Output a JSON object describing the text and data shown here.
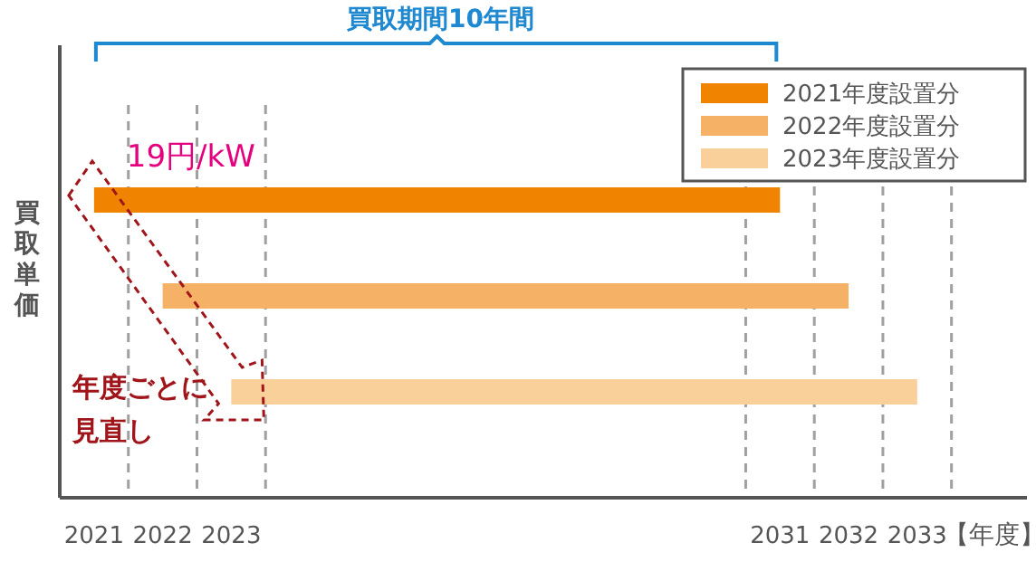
{
  "chart_data": {
    "type": "bar",
    "orientation": "horizontal",
    "xlabel": "【年度】",
    "ylabel": "買取単価",
    "categories": [
      null,
      null,
      null
    ],
    "series": [
      {
        "name": "2021年度設置分",
        "color": "#f08300",
        "values": [
          10,
          null,
          null
        ],
        "base": [
          2021,
          null,
          null
        ]
      },
      {
        "name": "2022年度設置分",
        "color": "#f5b266",
        "values": [
          null,
          10,
          null
        ],
        "base": [
          null,
          2022,
          null
        ]
      },
      {
        "name": "2023年度設置分",
        "color": "#f9cf9a",
        "values": [
          null,
          null,
          10
        ],
        "base": [
          null,
          null,
          2023
        ]
      }
    ],
    "xlim": [
      2020.5,
      2034.6
    ],
    "xticks": [
      2021,
      2022,
      2023,
      2031,
      2032,
      2033
    ],
    "ref_lines": [
      {
        "axis": "x",
        "value": 2021.5,
        "line_style": "dashed",
        "color": "#a0a0a0"
      },
      {
        "axis": "x",
        "value": 2022.5,
        "line_style": "dashed",
        "color": "#a0a0a0"
      },
      {
        "axis": "x",
        "value": 2023.5,
        "line_style": "dashed",
        "color": "#a0a0a0"
      },
      {
        "axis": "x",
        "value": 2030.5,
        "line_style": "dashed",
        "color": "#a0a0a0"
      },
      {
        "axis": "x",
        "value": 2031.5,
        "line_style": "dashed",
        "color": "#a0a0a0"
      },
      {
        "axis": "x",
        "value": 2032.5,
        "line_style": "dashed",
        "color": "#a0a0a0"
      },
      {
        "axis": "x",
        "value": 2033.5,
        "line_style": "dashed",
        "color": "#a0a0a0"
      }
    ],
    "annotations": [
      "買取期間10年間",
      "19円/kW",
      "年度ごとに",
      "見直し"
    ],
    "legend": "top right"
  }
}
